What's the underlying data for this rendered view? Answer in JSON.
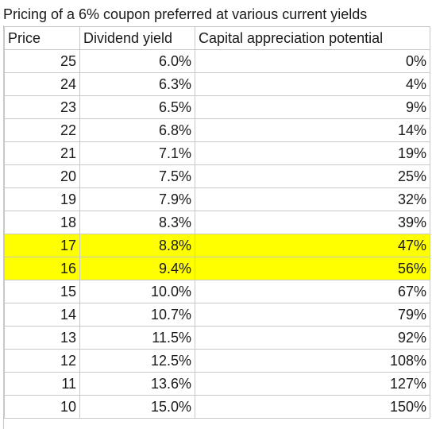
{
  "title": "Pricing of a 6% coupon preferred at various current yields",
  "headers": [
    "Price",
    "Dividend yield",
    "Capital appreciation potential"
  ],
  "rows": [
    {
      "price": "25",
      "yield": "6.0%",
      "appreciation": "0%",
      "highlighted": false
    },
    {
      "price": "24",
      "yield": "6.3%",
      "appreciation": "4%",
      "highlighted": false
    },
    {
      "price": "23",
      "yield": "6.5%",
      "appreciation": "9%",
      "highlighted": false
    },
    {
      "price": "22",
      "yield": "6.8%",
      "appreciation": "14%",
      "highlighted": false
    },
    {
      "price": "21",
      "yield": "7.1%",
      "appreciation": "19%",
      "highlighted": false
    },
    {
      "price": "20",
      "yield": "7.5%",
      "appreciation": "25%",
      "highlighted": false
    },
    {
      "price": "19",
      "yield": "7.9%",
      "appreciation": "32%",
      "highlighted": false
    },
    {
      "price": "18",
      "yield": "8.3%",
      "appreciation": "39%",
      "highlighted": false
    },
    {
      "price": "17",
      "yield": "8.8%",
      "appreciation": "47%",
      "highlighted": true
    },
    {
      "price": "16",
      "yield": "9.4%",
      "appreciation": "56%",
      "highlighted": true
    },
    {
      "price": "15",
      "yield": "10.0%",
      "appreciation": "67%",
      "highlighted": false
    },
    {
      "price": "14",
      "yield": "10.7%",
      "appreciation": "79%",
      "highlighted": false
    },
    {
      "price": "13",
      "yield": "11.5%",
      "appreciation": "92%",
      "highlighted": false
    },
    {
      "price": "12",
      "yield": "12.5%",
      "appreciation": "108%",
      "highlighted": false
    },
    {
      "price": "11",
      "yield": "13.6%",
      "appreciation": "127%",
      "highlighted": false
    },
    {
      "price": "10",
      "yield": "15.0%",
      "appreciation": "150%",
      "highlighted": false
    }
  ],
  "colors": {
    "highlight": "#ffff00",
    "gridline": "#c8c8c8",
    "text": "#1a1a1a",
    "background": "#ffffff"
  }
}
